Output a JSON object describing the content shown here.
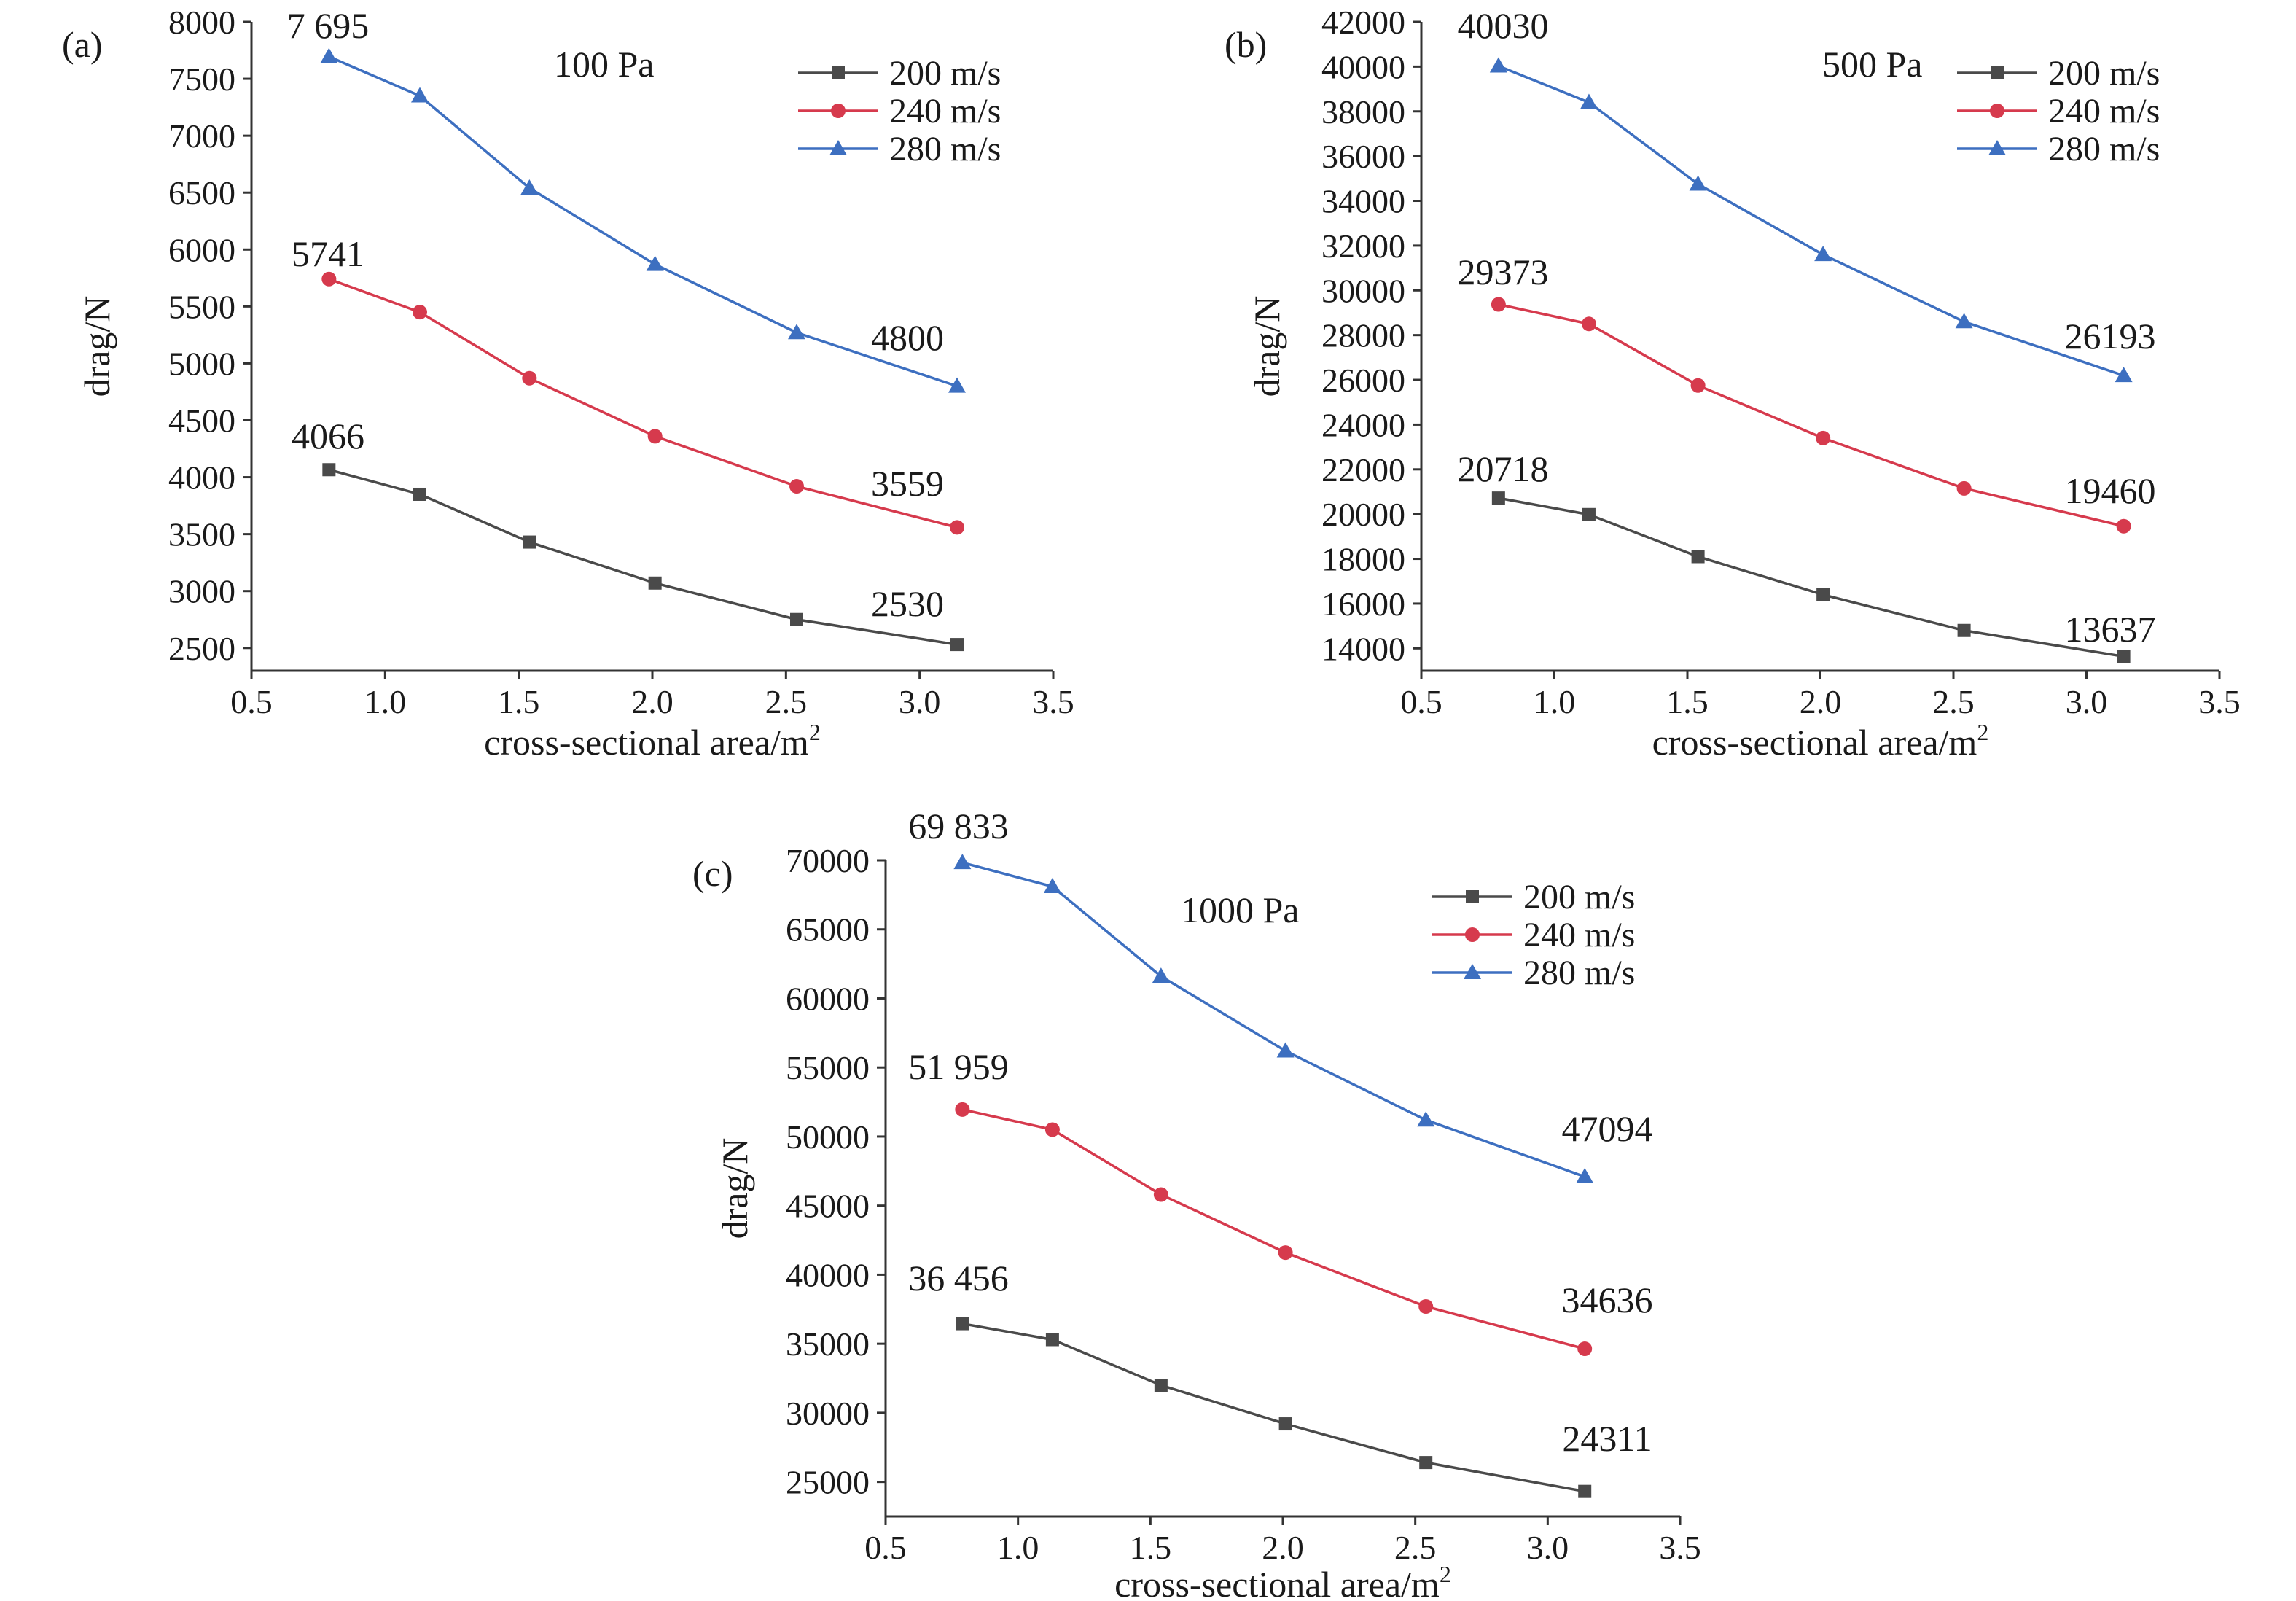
{
  "figure": {
    "colors": {
      "200 m/s": "#4a4a4a",
      "240 m/s": "#d63a4d",
      "280 m/s": "#3d6fc0"
    },
    "markers": {
      "200 m/s": "square",
      "240 m/s": "circle",
      "280 m/s": "triangle"
    }
  },
  "chart_data": [
    {
      "type": "line",
      "panel": "(a)",
      "annotation": "100 Pa",
      "xlabel": "cross-sectional area/m",
      "xlabel_sup": "2",
      "ylabel": "drag/N",
      "xlim": [
        0.5,
        3.5
      ],
      "ylim": [
        2300,
        8000
      ],
      "xticks": [
        "0.5",
        "1.0",
        "1.5",
        "2.0",
        "2.5",
        "3.0",
        "3.5"
      ],
      "yticks": [
        "2500",
        "3000",
        "3500",
        "4000",
        "4500",
        "5000",
        "5500",
        "6000",
        "6500",
        "7000",
        "7500",
        "8000"
      ],
      "x": [
        0.79,
        1.13,
        1.54,
        2.01,
        2.54,
        3.14
      ],
      "legend_position": "top-right",
      "series": [
        {
          "name": "200 m/s",
          "values": [
            4066,
            3850,
            3430,
            3070,
            2750,
            2530
          ],
          "labels": [
            "4066",
            "2530"
          ]
        },
        {
          "name": "240 m/s",
          "values": [
            5741,
            5450,
            4870,
            4360,
            3920,
            3559
          ],
          "labels": [
            "5741",
            "3559"
          ]
        },
        {
          "name": "280 m/s",
          "values": [
            7695,
            7350,
            6540,
            5870,
            5270,
            4800
          ],
          "labels": [
            "7 695",
            "4800"
          ]
        }
      ]
    },
    {
      "type": "line",
      "panel": "(b)",
      "annotation": "500 Pa",
      "xlabel": "cross-sectional area/m",
      "xlabel_sup": "2",
      "ylabel": "drag/N",
      "xlim": [
        0.5,
        3.5
      ],
      "ylim": [
        13000,
        42000
      ],
      "xticks": [
        "0.5",
        "1.0",
        "1.5",
        "2.0",
        "2.5",
        "3.0",
        "3.5"
      ],
      "yticks": [
        "14000",
        "16000",
        "18000",
        "20000",
        "22000",
        "24000",
        "26000",
        "28000",
        "30000",
        "32000",
        "34000",
        "36000",
        "38000",
        "40000",
        "42000"
      ],
      "x": [
        0.79,
        1.13,
        1.54,
        2.01,
        2.54,
        3.14
      ],
      "legend_position": "top-right",
      "series": [
        {
          "name": "200 m/s",
          "values": [
            20718,
            19980,
            18100,
            16400,
            14800,
            13637
          ],
          "labels": [
            "20718",
            "13637"
          ]
        },
        {
          "name": "240 m/s",
          "values": [
            29373,
            28500,
            25750,
            23400,
            21150,
            19460
          ],
          "labels": [
            "29373",
            "19460"
          ]
        },
        {
          "name": "280 m/s",
          "values": [
            40030,
            38400,
            34750,
            31600,
            28600,
            26193
          ],
          "labels": [
            "40030",
            "26193"
          ]
        }
      ]
    },
    {
      "type": "line",
      "panel": "(c)",
      "annotation": "1000 Pa",
      "xlabel": "cross-sectional area/m",
      "xlabel_sup": "2",
      "ylabel": "drag/N",
      "xlim": [
        0.5,
        3.5
      ],
      "ylim": [
        22500,
        70000
      ],
      "xticks": [
        "0.5",
        "1.0",
        "1.5",
        "2.0",
        "2.5",
        "3.0",
        "3.5"
      ],
      "yticks": [
        "25000",
        "30000",
        "35000",
        "40000",
        "45000",
        "50000",
        "55000",
        "60000",
        "65000",
        "70000"
      ],
      "x": [
        0.79,
        1.13,
        1.54,
        2.01,
        2.54,
        3.14
      ],
      "legend_position": "top-right",
      "series": [
        {
          "name": "200 m/s",
          "values": [
            36456,
            35300,
            32000,
            29200,
            26400,
            24311
          ],
          "labels": [
            "36 456",
            "24311"
          ]
        },
        {
          "name": "240 m/s",
          "values": [
            51959,
            50500,
            45800,
            41600,
            37700,
            34636
          ],
          "labels": [
            "51 959",
            "34636"
          ]
        },
        {
          "name": "280 m/s",
          "values": [
            69833,
            68100,
            61600,
            56200,
            51200,
            47094
          ],
          "labels": [
            "69 833",
            "47094"
          ]
        }
      ]
    }
  ]
}
